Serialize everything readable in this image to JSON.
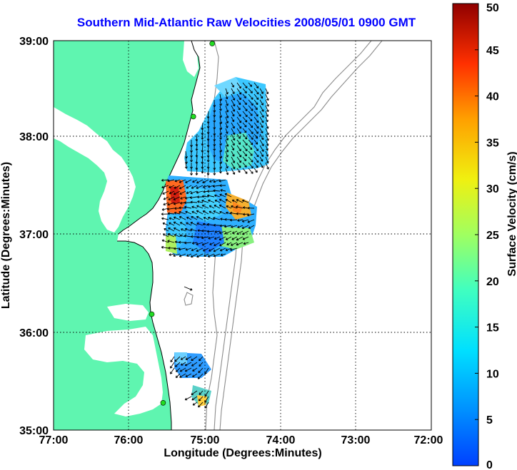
{
  "title": "Southern Mid-Atlantic Raw Velocities 2008/05/01 0900 GMT",
  "map": {
    "xlabel": "Longitude (Degrees:Minutes)",
    "ylabel": "Latitude (Degrees:Minutes)",
    "x_ticks": [
      "77:00",
      "76:00",
      "75:00",
      "74:00",
      "73:00",
      "72:00"
    ],
    "y_ticks": [
      "39:00",
      "38:00",
      "37:00",
      "36:00",
      "35:00"
    ],
    "lon_range": [
      -77,
      -72
    ],
    "lat_range": [
      35,
      39
    ],
    "grid": "dotted",
    "land_color": "#5ff5b0",
    "contour_color": "#8c8c8c"
  },
  "colorbar": {
    "label": "Surface Velocity (cm/s)",
    "range": [
      0,
      50
    ],
    "ticks": [
      "50",
      "45",
      "40",
      "35",
      "30",
      "25",
      "20",
      "15",
      "10",
      "5",
      "0"
    ],
    "colormap": "jet"
  },
  "stations": [
    {
      "lon": -74.9,
      "lat": 38.97
    },
    {
      "lon": -75.15,
      "lat": 38.22
    },
    {
      "lon": -75.7,
      "lat": 36.19
    },
    {
      "lon": -75.55,
      "lat": 35.28
    }
  ]
}
